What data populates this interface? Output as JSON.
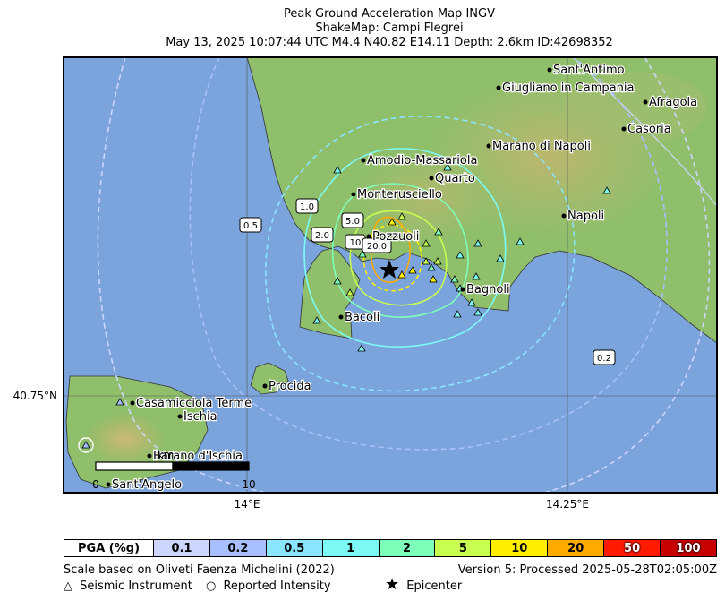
{
  "title": {
    "line1": "Peak Ground Acceleration Map INGV",
    "line2": "ShakeMap: Campi Flegrei",
    "line3": "May 13, 2025 10:07:44 UTC M4.4 N40.82 E14.11 Depth: 2.6km ID:42698352"
  },
  "axes": {
    "lat_label": "40.75°N",
    "lon_labels": [
      "14°E",
      "14.25°E"
    ]
  },
  "contour_labels": [
    "0.2",
    "0.5",
    "1.0",
    "2.0",
    "5.0",
    "10",
    "20.0"
  ],
  "cities": [
    {
      "name": "Sant'Antimo"
    },
    {
      "name": "Giugliano in Campania"
    },
    {
      "name": "Afragola"
    },
    {
      "name": "Casoria"
    },
    {
      "name": "Marano di Napoli"
    },
    {
      "name": "Amodio-Massariola"
    },
    {
      "name": "Quarto"
    },
    {
      "name": "Monterusciello"
    },
    {
      "name": "Napoli"
    },
    {
      "name": "Pozzuoli"
    },
    {
      "name": "Bagnoli"
    },
    {
      "name": "Bacoli"
    },
    {
      "name": "Procida"
    },
    {
      "name": "Casamicciola Terme"
    },
    {
      "name": "Ischia"
    },
    {
      "name": "Barano d'Ischia"
    },
    {
      "name": "Sant'Angelo"
    }
  ],
  "scale_bar": {
    "unit": "km",
    "start": "0",
    "end": "10"
  },
  "legend": {
    "header": "PGA (%g)",
    "bins": [
      {
        "label": "0.1",
        "color": "#cdd6ff"
      },
      {
        "label": "0.2",
        "color": "#a8bfff"
      },
      {
        "label": "0.5",
        "color": "#8ae6ff"
      },
      {
        "label": "1",
        "color": "#7dfaf4"
      },
      {
        "label": "2",
        "color": "#7dffba"
      },
      {
        "label": "5",
        "color": "#c8ff50"
      },
      {
        "label": "10",
        "color": "#ffee00"
      },
      {
        "label": "20",
        "color": "#ffaa00"
      },
      {
        "label": "50",
        "color": "#ff1a00"
      },
      {
        "label": "100",
        "color": "#c80000"
      }
    ]
  },
  "footer": {
    "scale_note": "Scale based on Oliveti Faenza Michelini (2022)",
    "version": "Version 5: Processed 2025-05-28T02:05:00Z",
    "sym_instrument": "△",
    "label_instrument": "Seismic Instrument",
    "sym_intensity": "○",
    "label_intensity": "Reported Intensity",
    "sym_epicenter": "★",
    "label_epicenter": "Epicenter"
  },
  "colors": {
    "sea": "#7ba3dc",
    "land": "#8fbf6a",
    "land_high": "#c7b36a",
    "border": "#000000"
  }
}
